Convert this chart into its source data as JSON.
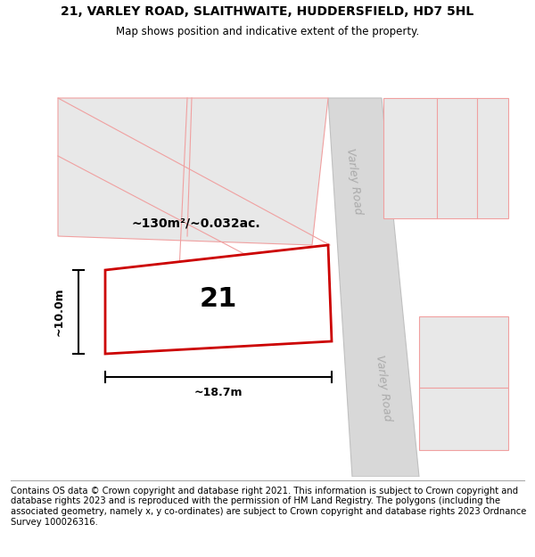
{
  "title": "21, VARLEY ROAD, SLAITHWAITE, HUDDERSFIELD, HD7 5HL",
  "subtitle": "Map shows position and indicative extent of the property.",
  "footer": "Contains OS data © Crown copyright and database right 2021. This information is subject to Crown copyright and database rights 2023 and is reproduced with the permission of HM Land Registry. The polygons (including the associated geometry, namely x, y co-ordinates) are subject to Crown copyright and database rights 2023 Ordnance Survey 100026316.",
  "bg_color": "#ffffff",
  "plot_fill": "#ffffff",
  "plot_border": "#cc0000",
  "neighbor_fill": "#e8e8e8",
  "neighbor_border": "#f0a0a0",
  "road_fill": "#d8d8d8",
  "road_border": "#c0c0c0",
  "area_label": "~130m²/~0.032ac.",
  "number_label": "21",
  "width_label": "~18.7m",
  "height_label": "~10.0m",
  "road_label": "Varley Road",
  "title_fontsize": 10,
  "subtitle_fontsize": 8.5,
  "footer_fontsize": 7.2,
  "label_fontsize": 10,
  "number_fontsize": 22,
  "dim_fontsize": 9
}
